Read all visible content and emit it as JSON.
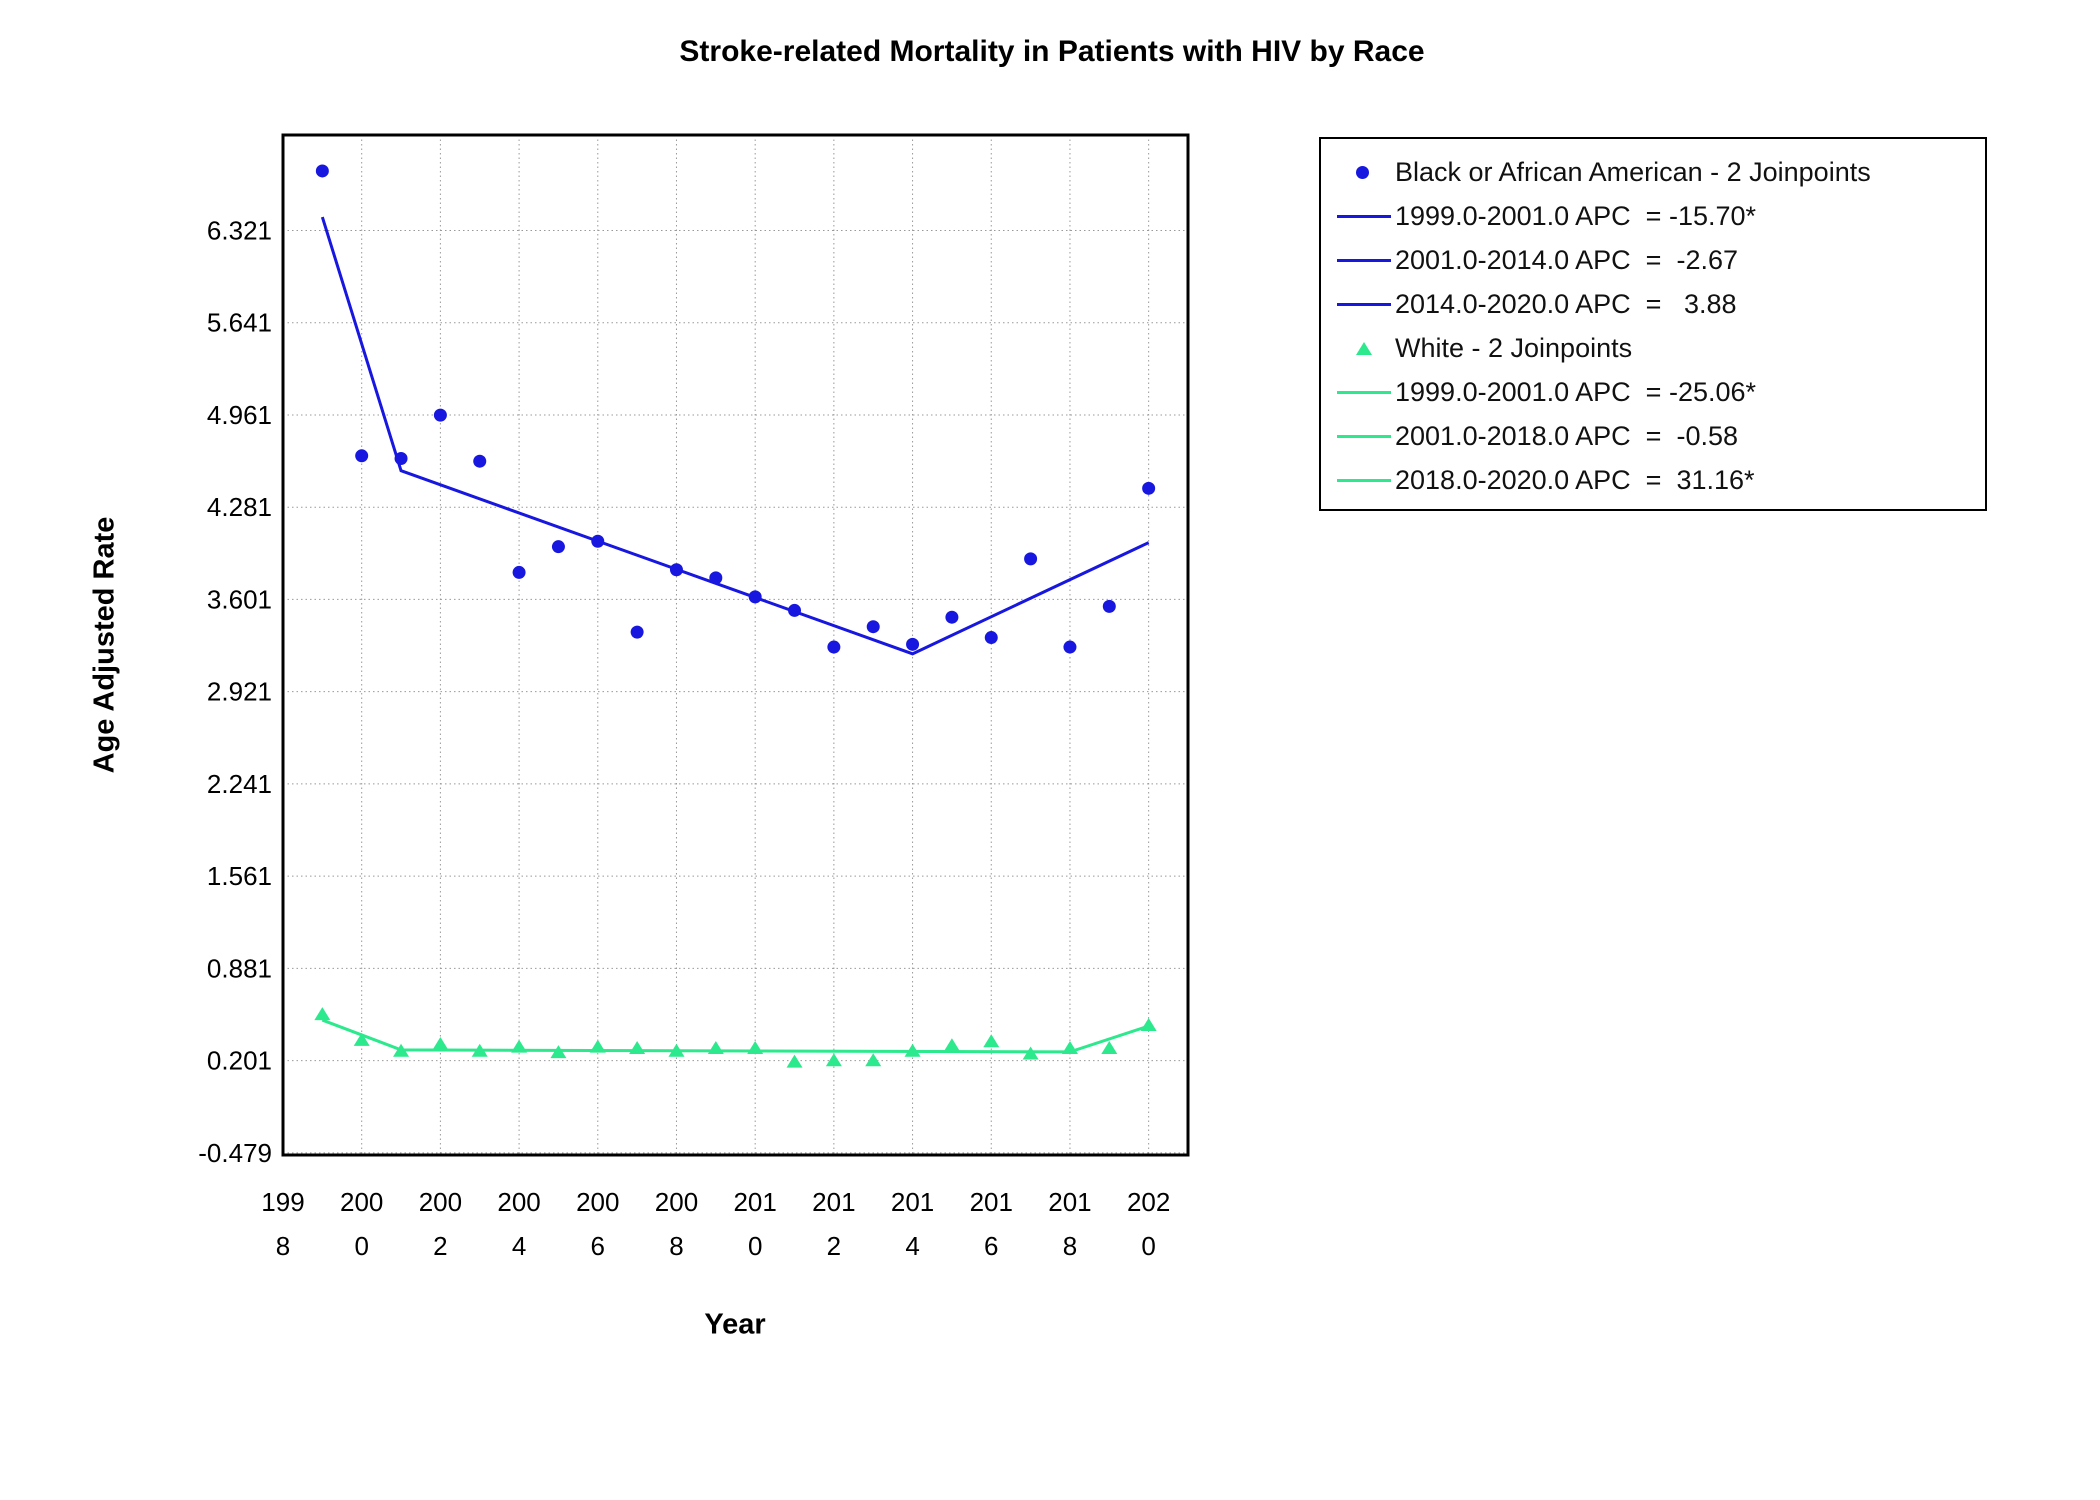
{
  "title": "Stroke-related Mortality in Patients with HIV by Race",
  "chart_data": {
    "type": "scatter",
    "title": "Stroke-related Mortality in Patients with HIV by Race",
    "xlabel": "Year",
    "ylabel": "Age Adjusted Rate",
    "xlim": [
      1998,
      2021
    ],
    "ylim": [
      -0.495,
      7.025
    ],
    "x_ticks": [
      1998,
      2000,
      2002,
      2004,
      2006,
      2008,
      2010,
      2012,
      2014,
      2016,
      2018,
      2020
    ],
    "y_ticks": [
      6.321,
      5.641,
      4.961,
      4.281,
      3.601,
      2.921,
      2.241,
      1.561,
      0.881,
      0.201,
      -0.479
    ],
    "grid": "dotted",
    "legend_position": "outside-top-right",
    "years": [
      1999,
      2000,
      2001,
      2002,
      2003,
      2004,
      2005,
      2006,
      2007,
      2008,
      2009,
      2010,
      2011,
      2012,
      2013,
      2014,
      2015,
      2016,
      2017,
      2018,
      2019,
      2020
    ],
    "series": [
      {
        "name": "Black or African American - 2 Joinpoints",
        "marker": "circle",
        "color": "#1717e0",
        "observed": [
          6.76,
          4.66,
          4.64,
          4.96,
          4.62,
          3.8,
          3.99,
          4.03,
          3.36,
          3.82,
          3.76,
          3.62,
          3.52,
          3.25,
          3.4,
          3.27,
          3.47,
          3.32,
          3.9,
          3.25,
          3.55,
          4.42
        ],
        "joinpoint_line": {
          "x": [
            1999,
            2001,
            2014,
            2020
          ],
          "y": [
            6.42,
            4.55,
            3.2,
            4.02
          ]
        },
        "apc_segments": [
          {
            "label": "1999.0-2001.0 APC  = -15.70*"
          },
          {
            "label": "2001.0-2014.0 APC  =  -2.67"
          },
          {
            "label": "2014.0-2020.0 APC  =   3.88"
          }
        ]
      },
      {
        "name": "White - 2 Joinpoints",
        "marker": "triangle",
        "color": "#2be98c",
        "observed": [
          0.54,
          0.35,
          0.27,
          0.32,
          0.27,
          0.3,
          0.26,
          0.3,
          0.29,
          0.27,
          0.29,
          0.29,
          0.19,
          0.2,
          0.2,
          0.27,
          0.31,
          0.34,
          0.25,
          0.29,
          0.29,
          0.46
        ],
        "joinpoint_line": {
          "x": [
            1999,
            2001,
            2018,
            2020
          ],
          "y": [
            0.5,
            0.28,
            0.265,
            0.456
          ]
        },
        "apc_segments": [
          {
            "label": "1999.0-2001.0 APC  = -25.06*"
          },
          {
            "label": "2001.0-2018.0 APC  =  -0.58"
          },
          {
            "label": "2018.0-2020.0 APC  =  31.16*"
          }
        ]
      }
    ],
    "colors": {
      "grid": "#999999",
      "axis": "#000000"
    }
  }
}
